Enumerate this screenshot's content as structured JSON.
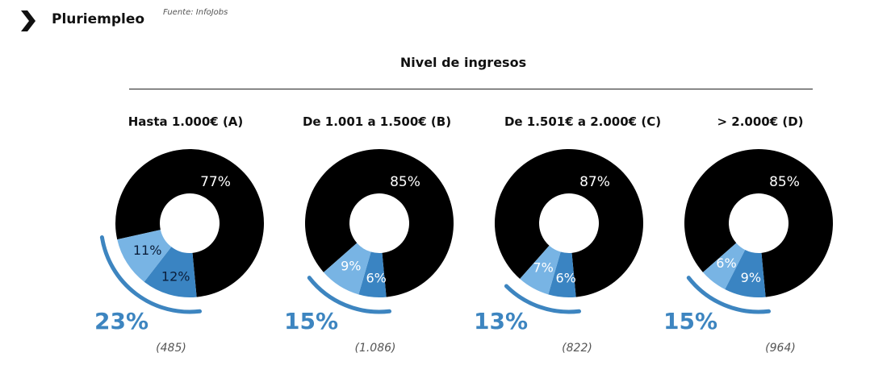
{
  "header": {
    "icon": "chevron-right-icon",
    "title": "Pluriempleo",
    "source": "Fuente: InfoJobs"
  },
  "section_title": "Nivel de ingresos",
  "colors": {
    "black_segment": "#000000",
    "light_blue_segment": "#78b4e4",
    "mid_blue_segment": "#3a84c2",
    "accent_text": "#3d85c0"
  },
  "groups": [
    {
      "label": "Hasta 1.000€ (A)",
      "main_pct": "77%",
      "light_pct": "11%",
      "mid_pct": "12%",
      "total": "23%",
      "n": "(485)"
    },
    {
      "label": "De 1.001 a 1.500€ (B)",
      "main_pct": "85%",
      "light_pct": "9%",
      "mid_pct": "6%",
      "total": "15%",
      "n": "(1.086)"
    },
    {
      "label": "De 1.501€ a 2.000€ (C)",
      "main_pct": "87%",
      "light_pct": "7%",
      "mid_pct": "6%",
      "total": "13%",
      "n": "(822)"
    },
    {
      "label": "> 2.000€ (D)",
      "main_pct": "85%",
      "light_pct": "6%",
      "mid_pct": "9%",
      "total": "15%",
      "n": "(964)"
    }
  ],
  "chart_data": {
    "type": "pie",
    "title": "Pluriempleo — Nivel de ingresos",
    "source": "Fuente: InfoJobs",
    "categories": [
      "Hasta 1.000€ (A)",
      "De 1.001 a 1.500€ (B)",
      "De 1.501€ a 2.000€ (C)",
      "> 2.000€ (D)"
    ],
    "series": [
      {
        "name": "black segment",
        "color": "#000000",
        "values": [
          77,
          85,
          87,
          85
        ]
      },
      {
        "name": "light blue segment",
        "color": "#78b4e4",
        "values": [
          11,
          9,
          7,
          6
        ]
      },
      {
        "name": "mid blue segment",
        "color": "#3a84c2",
        "values": [
          12,
          6,
          6,
          9
        ]
      }
    ],
    "highlight_totals": [
      23,
      15,
      13,
      15
    ],
    "sample_sizes": [
      485,
      1086,
      822,
      964
    ],
    "style": "donut"
  }
}
